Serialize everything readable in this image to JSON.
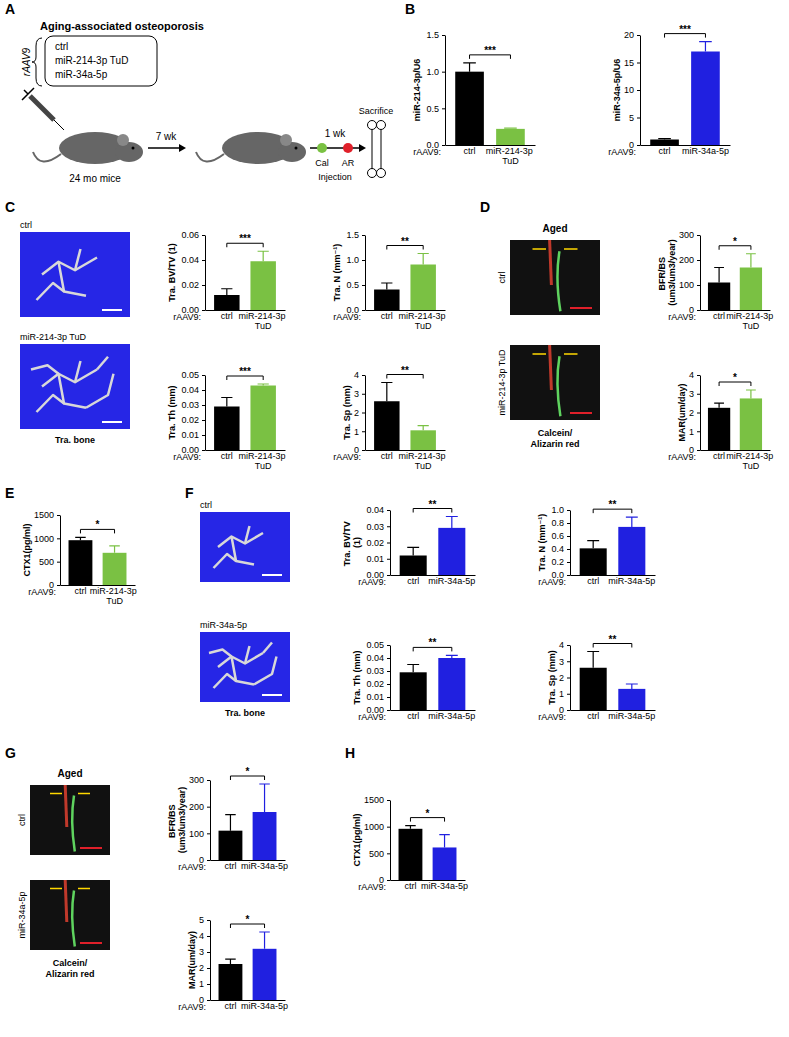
{
  "panel_labels": [
    "A",
    "B",
    "C",
    "D",
    "E",
    "F",
    "G",
    "H"
  ],
  "schematic": {
    "title": "Aging-associated osteoporosis",
    "vector": "rAAV9",
    "groups": [
      "ctrl",
      "miR-214-3p TuD",
      "miR-34a-5p"
    ],
    "mouse_label": "24 mo mice",
    "interval_1": "7 wk",
    "interval_2": "1 wk",
    "labels": [
      "Cal",
      "AR"
    ],
    "injection": "Injection",
    "endpoint": "Sacrifice"
  },
  "image_panels": [
    {
      "row_labels": [
        "ctrl",
        "miR-214-3p TuD"
      ],
      "caption": [
        "Tra. bone"
      ]
    },
    {
      "title": "Aged",
      "row_labels": [
        "ctrl",
        "miR-214-3p TuD"
      ],
      "caption": [
        "Calcein/",
        "Alizarin red"
      ]
    },
    {
      "row_labels": [
        "ctrl",
        "miR-34a-5p"
      ],
      "caption": [
        "Tra. bone"
      ]
    },
    {
      "title": "Aged",
      "row_labels": [
        "ctrl",
        "miR-34a-5p"
      ],
      "caption": [
        "Calcein/",
        "Alizarin red"
      ]
    }
  ],
  "chart_data": [
    {
      "type": "bar",
      "y_label": "miR-214-3p/U6",
      "x_label": "rAAV9:",
      "categories": [
        "ctrl",
        "miR-214-3p TuD"
      ],
      "values": [
        1.0,
        0.22
      ],
      "errors": [
        0.12,
        0.01
      ],
      "colors": [
        "#000000",
        "#7ac143"
      ],
      "ylim": [
        0,
        1.5
      ],
      "yticks": [
        {
          "value": 0,
          "label": "0.0"
        },
        {
          "value": 0.5,
          "label": "0.5"
        },
        {
          "value": 1,
          "label": "1.0"
        },
        {
          "value": 1.5,
          "label": "1.5"
        }
      ],
      "annotation": "***"
    },
    {
      "type": "bar",
      "y_label": "miR-34a-5p/U6",
      "x_label": "rAAV9:",
      "categories": [
        "ctrl",
        "miR-34a-5p"
      ],
      "values": [
        1.0,
        17.0
      ],
      "errors": [
        0.15,
        1.8
      ],
      "colors": [
        "#000000",
        "#2020e0"
      ],
      "ylim": [
        0,
        20
      ],
      "yticks": [
        0,
        5,
        10,
        15,
        20
      ],
      "annotation": "***"
    },
    {
      "type": "bar",
      "y_label": "Tra. BV/TV (1)",
      "x_label": "rAAV9:",
      "categories": [
        "ctrl",
        "miR-214-3p TuD"
      ],
      "values": [
        0.012,
        0.039
      ],
      "errors": [
        0.005,
        0.008
      ],
      "colors": [
        "#000000",
        "#7ac143"
      ],
      "ylim": [
        0,
        0.06
      ],
      "yticks": [
        {
          "value": 0,
          "label": "0.00"
        },
        {
          "value": 0.02,
          "label": "0.02"
        },
        {
          "value": 0.04,
          "label": "0.04"
        },
        {
          "value": 0.06,
          "label": "0.06"
        }
      ],
      "annotation": "***"
    },
    {
      "type": "bar",
      "y_label": "Tra. N (mm⁻¹)",
      "x_label": "rAAV9:",
      "categories": [
        "ctrl",
        "miR-214-3p TuD"
      ],
      "values": [
        0.41,
        0.91
      ],
      "errors": [
        0.13,
        0.22
      ],
      "colors": [
        "#000000",
        "#7ac143"
      ],
      "ylim": [
        0,
        1.5
      ],
      "yticks": [
        {
          "value": 0,
          "label": "0.0"
        },
        {
          "value": 0.5,
          "label": "0.5"
        },
        {
          "value": 1,
          "label": "1.0"
        },
        {
          "value": 1.5,
          "label": "1.5"
        }
      ],
      "annotation": "**"
    },
    {
      "type": "bar",
      "y_label": "Tra. Th (mm)",
      "x_label": "rAAV9:",
      "categories": [
        "ctrl",
        "miR-214-3p TuD"
      ],
      "values": [
        0.029,
        0.043
      ],
      "errors": [
        0.006,
        0.001
      ],
      "colors": [
        "#000000",
        "#7ac143"
      ],
      "ylim": [
        0,
        0.05
      ],
      "yticks": [
        {
          "value": 0,
          "label": "0.00"
        },
        {
          "value": 0.01,
          "label": "0.01"
        },
        {
          "value": 0.02,
          "label": "0.02"
        },
        {
          "value": 0.03,
          "label": "0.03"
        },
        {
          "value": 0.04,
          "label": "0.04"
        },
        {
          "value": 0.05,
          "label": "0.05"
        }
      ],
      "annotation": "***"
    },
    {
      "type": "bar",
      "y_label": "Tra. Sp (mm)",
      "x_label": "rAAV9:",
      "categories": [
        "ctrl",
        "miR-214-3p TuD"
      ],
      "values": [
        2.6,
        1.05
      ],
      "errors": [
        1.0,
        0.25
      ],
      "colors": [
        "#000000",
        "#7ac143"
      ],
      "ylim": [
        0,
        4
      ],
      "yticks": [
        0,
        1,
        2,
        3,
        4
      ],
      "annotation": "**"
    },
    {
      "type": "bar",
      "y_label": "BFR/BS (um3/um3/year)",
      "x_label": "rAAV9:",
      "categories": [
        "ctrl",
        "miR-214-3p TuD"
      ],
      "values": [
        110,
        170
      ],
      "errors": [
        60,
        55
      ],
      "colors": [
        "#000000",
        "#7ac143"
      ],
      "ylim": [
        0,
        300
      ],
      "yticks": [
        0,
        100,
        200,
        300
      ],
      "annotation": "*"
    },
    {
      "type": "bar",
      "y_label": "MAR(um/day)",
      "x_label": "rAAV9:",
      "categories": [
        "ctrl",
        "miR-214-3p TuD"
      ],
      "values": [
        2.25,
        2.75
      ],
      "errors": [
        0.25,
        0.45
      ],
      "colors": [
        "#000000",
        "#7ac143"
      ],
      "ylim": [
        0,
        4
      ],
      "yticks": [
        0,
        1,
        2,
        3,
        4
      ],
      "annotation": "*"
    },
    {
      "type": "bar",
      "y_label": "CTX1(pg/ml)",
      "x_label": "rAAV9:",
      "categories": [
        "ctrl",
        "miR-214-3p TuD"
      ],
      "values": [
        960,
        690
      ],
      "errors": [
        60,
        150
      ],
      "colors": [
        "#000000",
        "#7ac143"
      ],
      "ylim": [
        0,
        1500
      ],
      "yticks": [
        0,
        500,
        1000,
        1500
      ],
      "annotation": "*"
    },
    {
      "type": "bar",
      "y_label": "Tra. BV/TV (1)",
      "x_label": "rAAV9:",
      "categories": [
        "ctrl",
        "miR-34a-5p"
      ],
      "values": [
        0.012,
        0.029
      ],
      "errors": [
        0.005,
        0.007
      ],
      "colors": [
        "#000000",
        "#2020e0"
      ],
      "ylim": [
        0,
        0.04
      ],
      "yticks": [
        {
          "value": 0,
          "label": "0.00"
        },
        {
          "value": 0.01,
          "label": "0.01"
        },
        {
          "value": 0.02,
          "label": "0.02"
        },
        {
          "value": 0.03,
          "label": "0.03"
        },
        {
          "value": 0.04,
          "label": "0.04"
        }
      ],
      "annotation": "**"
    },
    {
      "type": "bar",
      "y_label": "Tra. N (mm⁻¹)",
      "x_label": "rAAV9:",
      "categories": [
        "ctrl",
        "miR-34a-5p"
      ],
      "values": [
        0.41,
        0.74
      ],
      "errors": [
        0.12,
        0.15
      ],
      "colors": [
        "#000000",
        "#2020e0"
      ],
      "ylim": [
        0,
        1.0
      ],
      "yticks": [
        {
          "value": 0,
          "label": "0.0"
        },
        {
          "value": 0.2,
          "label": "0.2"
        },
        {
          "value": 0.4,
          "label": "0.4"
        },
        {
          "value": 0.6,
          "label": "0.6"
        },
        {
          "value": 0.8,
          "label": "0.8"
        },
        {
          "value": 1,
          "label": "1.0"
        }
      ],
      "annotation": "**"
    },
    {
      "type": "bar",
      "y_label": "Tra. Th (mm)",
      "x_label": "rAAV9:",
      "categories": [
        "ctrl",
        "miR-34a-5p"
      ],
      "values": [
        0.029,
        0.04
      ],
      "errors": [
        0.006,
        0.002
      ],
      "colors": [
        "#000000",
        "#2020e0"
      ],
      "ylim": [
        0,
        0.05
      ],
      "yticks": [
        {
          "value": 0,
          "label": "0.00"
        },
        {
          "value": 0.01,
          "label": "0.01"
        },
        {
          "value": 0.02,
          "label": "0.02"
        },
        {
          "value": 0.03,
          "label": "0.03"
        },
        {
          "value": 0.04,
          "label": "0.04"
        },
        {
          "value": 0.05,
          "label": "0.05"
        }
      ],
      "annotation": "**"
    },
    {
      "type": "bar",
      "y_label": "Tra. Sp (mm)",
      "x_label": "rAAV9:",
      "categories": [
        "ctrl",
        "miR-34a-5p"
      ],
      "values": [
        2.6,
        1.3
      ],
      "errors": [
        1.0,
        0.3
      ],
      "colors": [
        "#000000",
        "#2020e0"
      ],
      "ylim": [
        0,
        4
      ],
      "yticks": [
        0,
        1,
        2,
        3,
        4
      ],
      "annotation": "**"
    },
    {
      "type": "bar",
      "y_label": "BFR/BS (um3/um3/year)",
      "x_label": "rAAV9:",
      "categories": [
        "ctrl",
        "miR-34a-5p"
      ],
      "values": [
        110,
        180
      ],
      "errors": [
        60,
        105
      ],
      "colors": [
        "#000000",
        "#2020e0"
      ],
      "ylim": [
        0,
        300
      ],
      "yticks": [
        0,
        100,
        200,
        300
      ],
      "annotation": "*"
    },
    {
      "type": "bar",
      "y_label": "MAR(um/day)",
      "x_label": "rAAV9:",
      "categories": [
        "ctrl",
        "miR-34a-5p"
      ],
      "values": [
        2.25,
        3.2
      ],
      "errors": [
        0.3,
        1.05
      ],
      "colors": [
        "#000000",
        "#2020e0"
      ],
      "ylim": [
        0,
        5
      ],
      "yticks": [
        0,
        1,
        2,
        3,
        4,
        5
      ],
      "annotation": "*"
    },
    {
      "type": "bar",
      "y_label": "CTX1(pg/ml)",
      "x_label": "rAAV9:",
      "categories": [
        "ctrl",
        "miR-34a-5p"
      ],
      "values": [
        960,
        610
      ],
      "errors": [
        60,
        240
      ],
      "colors": [
        "#000000",
        "#2020e0"
      ],
      "ylim": [
        0,
        1500
      ],
      "yticks": [
        0,
        500,
        1000,
        1500
      ],
      "annotation": "*"
    }
  ]
}
